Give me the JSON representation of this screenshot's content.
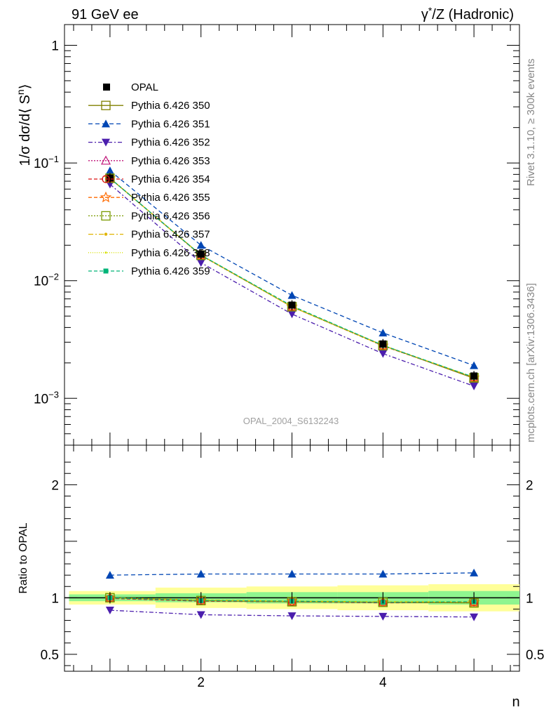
{
  "header": {
    "left_title": "91 GeV ee",
    "right_title_prefix": "γ",
    "right_title_sup": "*",
    "right_title_suffix": "/Z (Hadronic)"
  },
  "side_text": {
    "rivet": "Rivet 3.1.10, ≥ 300k events",
    "mcplots": "mcplots.cern.ch [arXiv:1306.3436]"
  },
  "watermark": "OPAL_2004_S6132243",
  "colors": {
    "OPAL": "#000000",
    "350": "#808000",
    "351": "#0046b4",
    "352": "#4b1ead",
    "353": "#c0167a",
    "354": "#dd1010",
    "355": "#ff6a00",
    "356": "#7a9a00",
    "357": "#e0b400",
    "358": "#d7e100",
    "359": "#00b478",
    "band_inner": "#8ff58f",
    "band_outer": "#ffff99"
  },
  "chart_data": [
    {
      "type": "line",
      "scale": "log",
      "title": "91 GeV ee   γ*/Z (Hadronic)",
      "xlabel": "n",
      "ylabel": "1/σ dσ/d⟨ S^n ⟩",
      "ylabel_parts": [
        "1/σ dσ/d⟨ S",
        "n",
        "⟩"
      ],
      "xlim": [
        0.5,
        5.5
      ],
      "ylim": [
        0.0004,
        1.5
      ],
      "y_ticks": [
        {
          "value": 1,
          "label": "1",
          "exp": ""
        },
        {
          "value": 0.1,
          "label": "10",
          "exp": "−1"
        },
        {
          "value": 0.01,
          "label": "10",
          "exp": "−2"
        },
        {
          "value": 0.001,
          "label": "10",
          "exp": "−3"
        }
      ],
      "x": [
        1,
        2,
        3,
        4,
        5
      ],
      "series": [
        {
          "name": "OPAL",
          "key": "OPAL",
          "marker": "square-filled",
          "values": [
            0.0745,
            0.0168,
            0.0062,
            0.0029,
            0.00155
          ]
        },
        {
          "name": "Pythia 6.426 350",
          "key": "350",
          "marker": "square-open",
          "dash": "",
          "values": [
            0.074,
            0.0165,
            0.006,
            0.00282,
            0.00148
          ]
        },
        {
          "name": "Pythia 6.426 351",
          "key": "351",
          "marker": "triangle-up-filled",
          "dash": "6,4",
          "values": [
            0.086,
            0.02,
            0.0075,
            0.0036,
            0.0019
          ]
        },
        {
          "name": "Pythia 6.426 352",
          "key": "352",
          "marker": "triangle-down-filled",
          "dash": "6,3,2,3",
          "values": [
            0.066,
            0.0142,
            0.0052,
            0.0024,
            0.00127
          ]
        },
        {
          "name": "Pythia 6.426 353",
          "key": "353",
          "marker": "triangle-up-open",
          "dash": "2,2",
          "values": [
            0.0742,
            0.0164,
            0.006,
            0.0028,
            0.0015
          ]
        },
        {
          "name": "Pythia 6.426 354",
          "key": "354",
          "marker": "circle-open",
          "dash": "5,3",
          "values": [
            0.0742,
            0.0164,
            0.006,
            0.00279,
            0.0015
          ]
        },
        {
          "name": "Pythia 6.426 355",
          "key": "355",
          "marker": "star-open",
          "dash": "5,3",
          "values": [
            0.0742,
            0.0164,
            0.006,
            0.0028,
            0.0015
          ]
        },
        {
          "name": "Pythia 6.426 356",
          "key": "356",
          "marker": "square-open",
          "dash": "2,2",
          "values": [
            0.0742,
            0.0164,
            0.006,
            0.0028,
            0.0015
          ]
        },
        {
          "name": "Pythia 6.426 357",
          "key": "357",
          "marker": "dot",
          "dash": "7,3,2,3",
          "values": [
            0.0742,
            0.0165,
            0.006,
            0.00281,
            0.00151
          ]
        },
        {
          "name": "Pythia 6.426 358",
          "key": "358",
          "marker": "dot-small",
          "dash": "1,2",
          "values": [
            0.0742,
            0.0165,
            0.006,
            0.00281,
            0.00151
          ]
        },
        {
          "name": "Pythia 6.426 359",
          "key": "359",
          "marker": "square-filled-small",
          "dash": "5,3",
          "values": [
            0.0742,
            0.0165,
            0.0061,
            0.00282,
            0.00151
          ]
        }
      ]
    },
    {
      "type": "line",
      "scale": "linear",
      "xlabel": "n",
      "ylabel": "Ratio to OPAL",
      "xlim": [
        0.5,
        5.5
      ],
      "ylim": [
        0.35,
        2.35
      ],
      "x_ticks": [
        2,
        4
      ],
      "y_ticks": [
        0.5,
        1,
        2
      ],
      "x": [
        1,
        2,
        3,
        4,
        5
      ],
      "bands": [
        {
          "name": "OPAL uncertainty (outer)",
          "lo": [
            0.94,
            0.91,
            0.9,
            0.89,
            0.88
          ],
          "hi": [
            1.06,
            1.09,
            1.1,
            1.11,
            1.12
          ]
        },
        {
          "name": "OPAL uncertainty (inner)",
          "lo": [
            0.97,
            0.96,
            0.95,
            0.95,
            0.94
          ],
          "hi": [
            1.03,
            1.04,
            1.05,
            1.05,
            1.06
          ]
        }
      ],
      "series": [
        {
          "name": "Pythia 6.426 350",
          "key": "350",
          "values": [
            1.0,
            0.975,
            0.965,
            0.96,
            0.955
          ]
        },
        {
          "name": "Pythia 6.426 351",
          "key": "351",
          "values": [
            1.2,
            1.21,
            1.21,
            1.21,
            1.22
          ]
        },
        {
          "name": "Pythia 6.426 352",
          "key": "352",
          "values": [
            0.89,
            0.85,
            0.84,
            0.835,
            0.83
          ]
        },
        {
          "name": "Pythia 6.426 353",
          "key": "353",
          "values": [
            1.0,
            0.975,
            0.965,
            0.96,
            0.96
          ]
        },
        {
          "name": "Pythia 6.426 354",
          "key": "354",
          "values": [
            0.995,
            0.97,
            0.965,
            0.955,
            0.96
          ]
        },
        {
          "name": "Pythia 6.426 355",
          "key": "355",
          "values": [
            1.0,
            0.975,
            0.97,
            0.96,
            0.96
          ]
        },
        {
          "name": "Pythia 6.426 356",
          "key": "356",
          "values": [
            1.0,
            0.975,
            0.965,
            0.96,
            0.955
          ]
        },
        {
          "name": "Pythia 6.426 357",
          "key": "357",
          "values": [
            1.0,
            0.98,
            0.97,
            0.965,
            0.965
          ]
        },
        {
          "name": "Pythia 6.426 358",
          "key": "358",
          "values": [
            1.0,
            0.98,
            0.97,
            0.965,
            0.965
          ]
        },
        {
          "name": "Pythia 6.426 359",
          "key": "359",
          "values": [
            1.0,
            0.975,
            0.97,
            0.96,
            0.965
          ]
        }
      ]
    }
  ]
}
